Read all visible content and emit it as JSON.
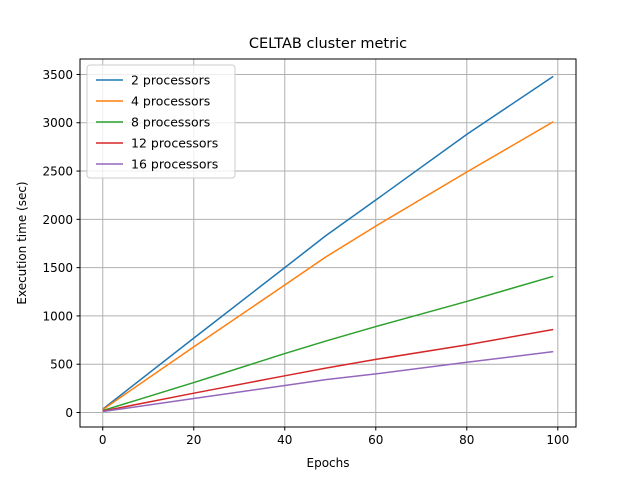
{
  "chart_data": {
    "type": "line",
    "title": "CELTAB cluster metric",
    "xlabel": "Epochs",
    "ylabel": "Execution time (sec)",
    "xlim": [
      -5,
      104
    ],
    "ylim": [
      -150,
      3660
    ],
    "xticks": [
      0,
      20,
      40,
      60,
      80,
      100
    ],
    "yticks": [
      0,
      500,
      1000,
      1500,
      2000,
      2500,
      3000,
      3500
    ],
    "grid": true,
    "legend_position": "upper-left",
    "x": [
      0,
      20,
      40,
      49,
      60,
      80,
      99
    ],
    "series": [
      {
        "name": "2 processors",
        "color": "#1f77b4",
        "values": [
          35,
          770,
          1500,
          1830,
          2200,
          2880,
          3480
        ]
      },
      {
        "name": "4 processors",
        "color": "#ff7f0e",
        "values": [
          30,
          680,
          1320,
          1610,
          1930,
          2490,
          3010
        ]
      },
      {
        "name": "8 processors",
        "color": "#2ca02c",
        "values": [
          20,
          310,
          610,
          740,
          890,
          1150,
          1410
        ]
      },
      {
        "name": "12 processors",
        "color": "#d62728",
        "values": [
          15,
          200,
          380,
          460,
          550,
          700,
          860
        ]
      },
      {
        "name": "16 processors",
        "color": "#9467bd",
        "values": [
          10,
          145,
          280,
          340,
          400,
          520,
          630
        ]
      }
    ]
  }
}
